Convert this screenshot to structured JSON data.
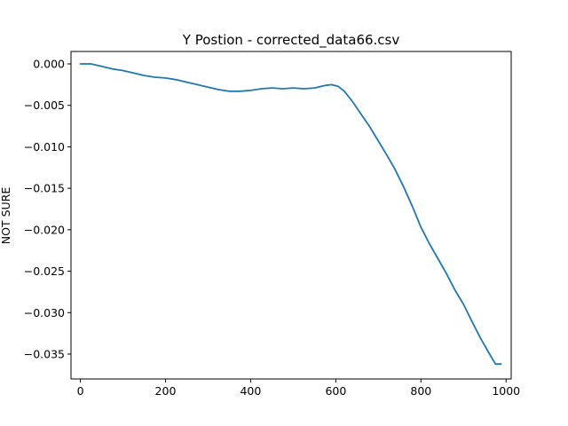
{
  "chart_data": {
    "type": "line",
    "title": "Y Postion - corrected_data66.csv",
    "xlabel": "",
    "ylabel": "NOT SURE",
    "xlim": [
      -22,
      1012
    ],
    "ylim": [
      -0.038,
      0.0015
    ],
    "xticks": [
      0,
      200,
      400,
      600,
      800,
      1000
    ],
    "xtick_labels": [
      "0",
      "200",
      "400",
      "600",
      "800",
      "1000"
    ],
    "yticks": [
      0.0,
      -0.005,
      -0.01,
      -0.015,
      -0.02,
      -0.025,
      -0.03,
      -0.035
    ],
    "ytick_labels": [
      "0.000",
      "−0.005",
      "−0.010",
      "−0.015",
      "−0.020",
      "−0.025",
      "−0.030",
      "−0.035"
    ],
    "grid": false,
    "series": [
      {
        "color": "#1f77b4",
        "x": [
          0,
          25,
          50,
          75,
          100,
          125,
          150,
          175,
          200,
          225,
          250,
          275,
          300,
          325,
          350,
          375,
          400,
          425,
          450,
          475,
          500,
          525,
          550,
          575,
          590,
          605,
          620,
          640,
          660,
          680,
          700,
          720,
          740,
          760,
          780,
          800,
          820,
          840,
          860,
          880,
          900,
          920,
          940,
          960,
          975,
          988
        ],
        "y": [
          0.0,
          0.0,
          -0.0003,
          -0.0006,
          -0.0008,
          -0.0011,
          -0.0014,
          -0.0016,
          -0.0017,
          -0.0019,
          -0.0022,
          -0.0025,
          -0.0028,
          -0.0031,
          -0.0033,
          -0.0033,
          -0.0032,
          -0.003,
          -0.0029,
          -0.003,
          -0.0029,
          -0.003,
          -0.0029,
          -0.0026,
          -0.0025,
          -0.0027,
          -0.0033,
          -0.0046,
          -0.0061,
          -0.0076,
          -0.0093,
          -0.011,
          -0.0128,
          -0.0149,
          -0.0172,
          -0.0197,
          -0.0217,
          -0.0235,
          -0.0253,
          -0.0273,
          -0.029,
          -0.0311,
          -0.0331,
          -0.0349,
          -0.0362,
          -0.0362
        ]
      }
    ]
  }
}
